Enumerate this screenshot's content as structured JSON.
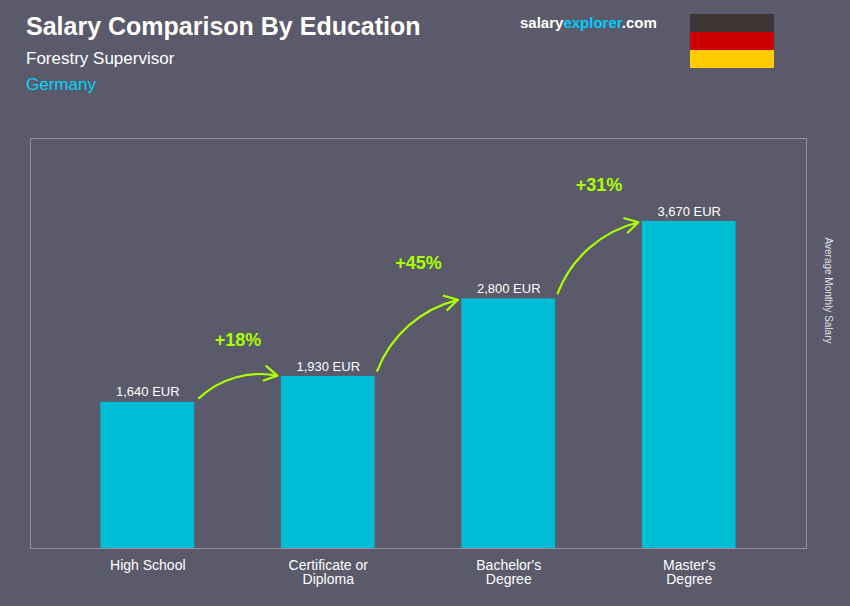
{
  "chart_data": {
    "type": "bar",
    "title": "Salary Comparison By Education",
    "subtitle": "Forestry Supervisor",
    "country": "Germany",
    "country_color": "#00d4ff",
    "ylabel": "Average Monthly Salary",
    "categories": [
      "High School",
      "Certificate or\nDiploma",
      "Bachelor's\nDegree",
      "Master's\nDegree"
    ],
    "values": [
      1640,
      1930,
      2800,
      3670
    ],
    "value_labels": [
      "1,640 EUR",
      "1,930 EUR",
      "2,800 EUR",
      "3,670 EUR"
    ],
    "data_labels": true,
    "color": "#00bcd4",
    "ylim": [
      0,
      4600
    ],
    "yticks": [],
    "tick_labels": "x",
    "grid": false,
    "annotations": [
      {
        "text": "+18%",
        "from": 0,
        "to": 1
      },
      {
        "text": "+45%",
        "from": 1,
        "to": 2
      },
      {
        "text": "+31%",
        "from": 2,
        "to": 3
      }
    ],
    "annotation_color": "#aaff00",
    "brand": [
      {
        "text": "salary",
        "color": "#ffffff"
      },
      {
        "text": "explorer",
        "color": "#00ccff"
      },
      {
        "text": ".com",
        "color": "#ffffff"
      }
    ],
    "flag_colors": [
      "#3d3635",
      "#cc0000",
      "#ffcc00"
    ],
    "background": "#5a5a6a"
  }
}
